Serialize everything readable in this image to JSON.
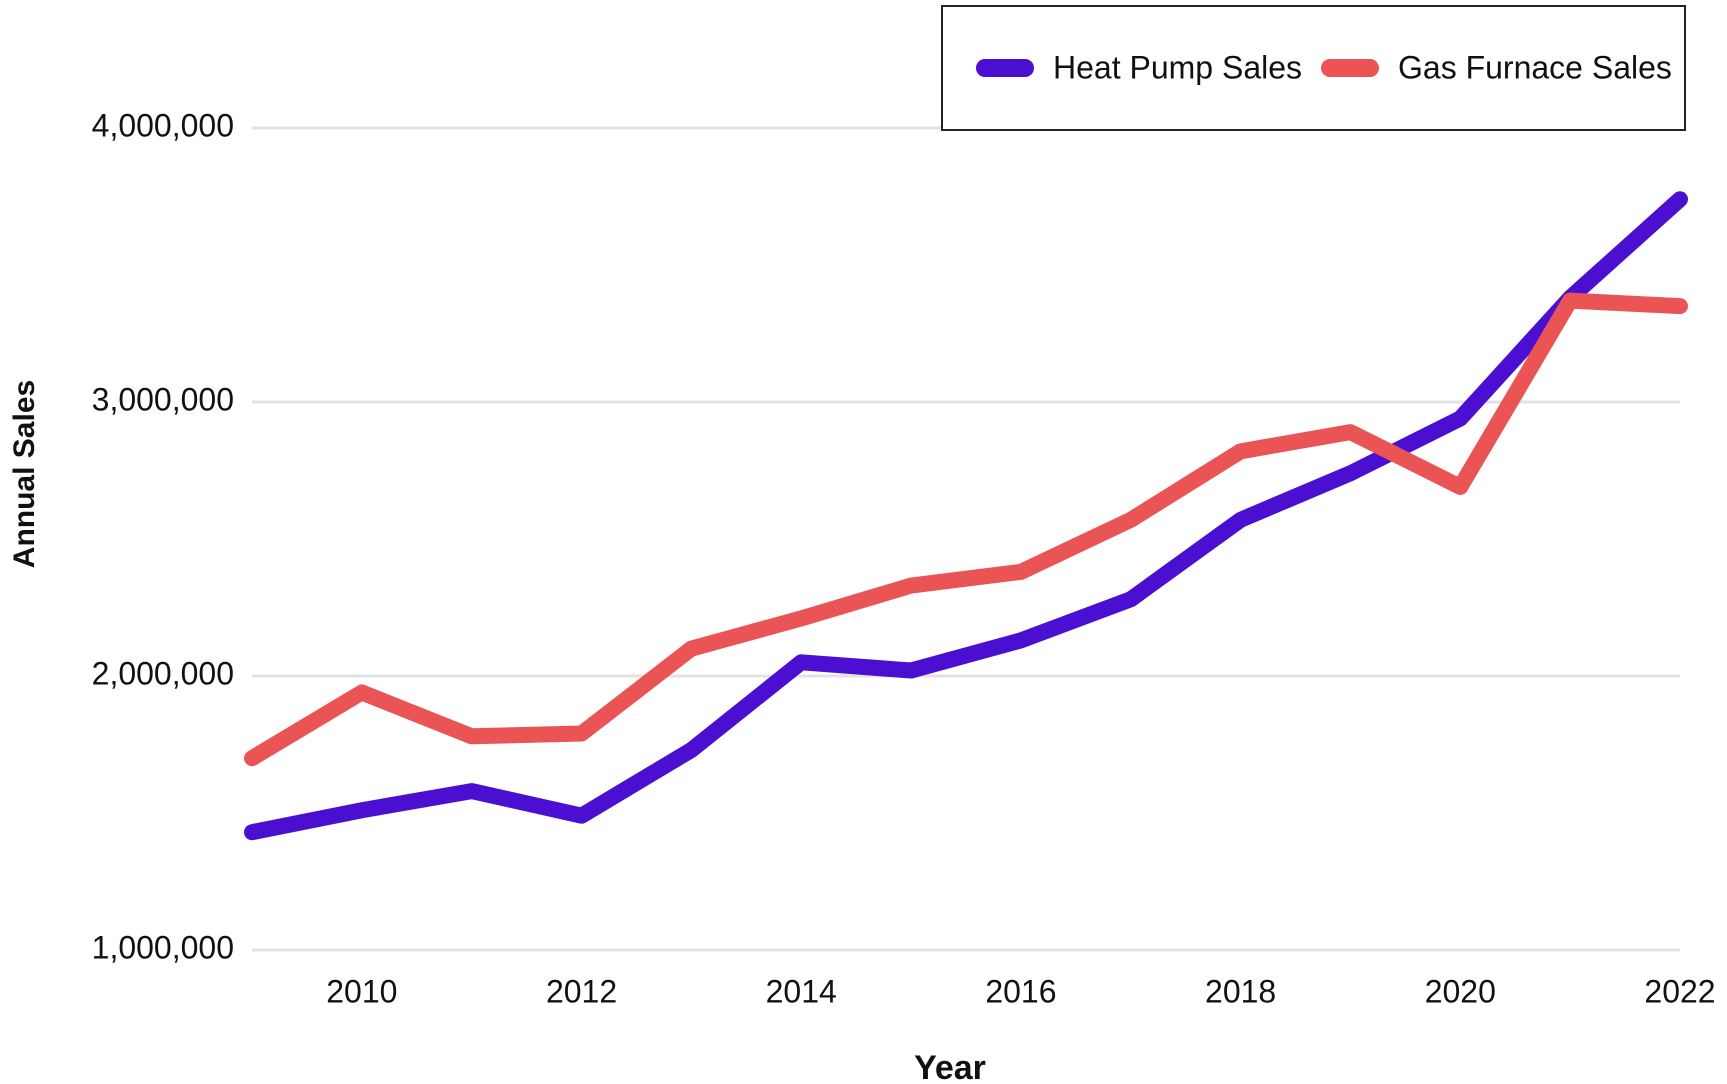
{
  "chart_data": {
    "type": "line",
    "x": [
      2009,
      2010,
      2011,
      2012,
      2013,
      2014,
      2015,
      2016,
      2017,
      2018,
      2019,
      2020,
      2021,
      2022
    ],
    "series": [
      {
        "name": "Heat Pump Sales",
        "color": "#4a0fd0",
        "values": [
          1430000,
          1510000,
          1580000,
          1490000,
          1730000,
          2050000,
          2020000,
          2130000,
          2280000,
          2570000,
          2740000,
          2940000,
          3380000,
          3740000
        ]
      },
      {
        "name": "Gas Furnace Sales",
        "color": "#ea5455",
        "values": [
          1700000,
          1940000,
          1780000,
          1790000,
          2100000,
          2210000,
          2330000,
          2380000,
          2570000,
          2820000,
          2890000,
          2690000,
          3370000,
          3350000
        ]
      }
    ],
    "xlabel": "Year",
    "ylabel": "Annual Sales",
    "xlim": [
      2009,
      2022
    ],
    "xticks": [
      2010,
      2012,
      2014,
      2016,
      2018,
      2020,
      2022
    ],
    "ylim": [
      1000000,
      4000000
    ],
    "yticks": [
      {
        "value": 1000000,
        "label": "1,000,000"
      },
      {
        "value": 2000000,
        "label": "2,000,000"
      },
      {
        "value": 3000000,
        "label": "3,000,000"
      },
      {
        "value": 4000000,
        "label": "4,000,000"
      }
    ],
    "grid": true,
    "legend": "top-right"
  }
}
